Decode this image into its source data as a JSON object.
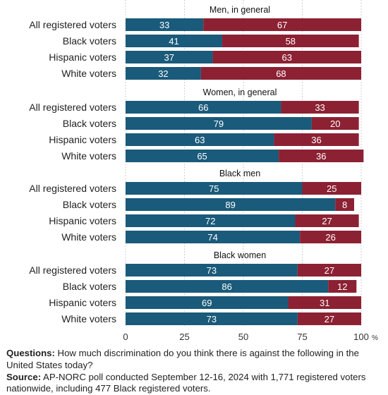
{
  "chart_data": {
    "type": "bar",
    "stacked": true,
    "orientation": "horizontal",
    "colors": {
      "first": "#1a5a7a",
      "second": "#8c2133"
    },
    "xlim": [
      0,
      100
    ],
    "xticks": [
      0,
      25,
      50,
      75,
      100
    ],
    "xunit": "%",
    "grid": "vertical",
    "groups": [
      {
        "title": "Men, in general",
        "rows": [
          {
            "label": "All registered voters",
            "values": [
              33,
              67
            ]
          },
          {
            "label": "Black voters",
            "values": [
              41,
              58
            ]
          },
          {
            "label": "Hispanic voters",
            "values": [
              37,
              63
            ]
          },
          {
            "label": "White voters",
            "values": [
              32,
              68
            ]
          }
        ]
      },
      {
        "title": "Women, in general",
        "rows": [
          {
            "label": "All registered voters",
            "values": [
              66,
              33
            ]
          },
          {
            "label": "Black voters",
            "values": [
              79,
              20
            ]
          },
          {
            "label": "Hispanic voters",
            "values": [
              63,
              36
            ]
          },
          {
            "label": "White voters",
            "values": [
              65,
              36
            ]
          }
        ]
      },
      {
        "title": "Black men",
        "rows": [
          {
            "label": "All registered voters",
            "values": [
              75,
              25
            ]
          },
          {
            "label": "Black voters",
            "values": [
              89,
              8
            ]
          },
          {
            "label": "Hispanic voters",
            "values": [
              72,
              27
            ]
          },
          {
            "label": "White voters",
            "values": [
              74,
              26
            ]
          }
        ]
      },
      {
        "title": "Black women",
        "rows": [
          {
            "label": "All registered voters",
            "values": [
              73,
              27
            ]
          },
          {
            "label": "Black voters",
            "values": [
              86,
              12
            ]
          },
          {
            "label": "Hispanic voters",
            "values": [
              69,
              31
            ]
          },
          {
            "label": "White voters",
            "values": [
              73,
              27
            ]
          }
        ]
      }
    ]
  },
  "footer": {
    "questions_label": "Questions:",
    "questions_text": "How much discrimination do you think there is against the following in the United States today?",
    "source_label": "Source:",
    "source_text": "AP-NORC poll conducted September 12-16, 2024 with 1,771 registered voters nationwide, including 477 Black registered voters."
  }
}
